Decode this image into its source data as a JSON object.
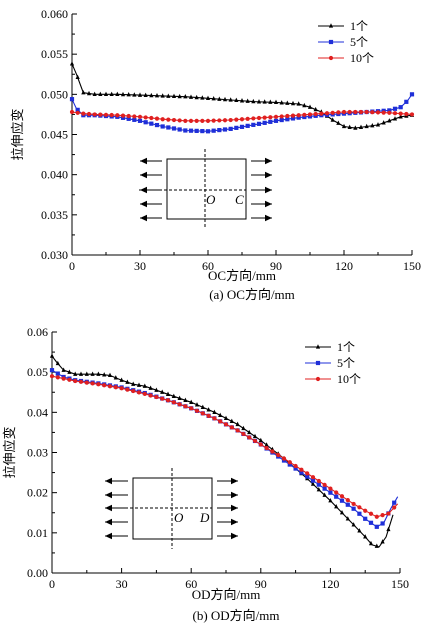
{
  "chart_data": [
    {
      "type": "line",
      "xlabel": "OC方向/mm",
      "ylabel": "拉伸应变",
      "caption": "(a) OC方向/mm",
      "xlim": [
        0,
        150
      ],
      "ylim": [
        0.03,
        0.06
      ],
      "xticks": [
        0,
        30,
        60,
        90,
        120,
        150
      ],
      "xtick_labels": [
        "0",
        "30",
        "60",
        "90",
        "120",
        "150"
      ],
      "yticks": [
        0.03,
        0.035,
        0.04,
        0.045,
        0.05,
        0.055,
        0.06
      ],
      "ytick_labels": [
        "0.030",
        "0.035",
        "0.040",
        "0.045",
        "0.050",
        "0.055",
        "0.060"
      ],
      "legend_position": "top-right",
      "inset": {
        "center_label": "O",
        "point_label": "C"
      },
      "series": [
        {
          "name": "1个",
          "color": "#000000",
          "marker": "triangle",
          "points": [
            [
              0,
              0.0538
            ],
            [
              2,
              0.0525
            ],
            [
              5,
              0.0502
            ],
            [
              10,
              0.05
            ],
            [
              20,
              0.05
            ],
            [
              30,
              0.0499
            ],
            [
              40,
              0.0498
            ],
            [
              50,
              0.0497
            ],
            [
              60,
              0.0495
            ],
            [
              70,
              0.0493
            ],
            [
              80,
              0.0491
            ],
            [
              90,
              0.049
            ],
            [
              100,
              0.0488
            ],
            [
              105,
              0.0484
            ],
            [
              110,
              0.0478
            ],
            [
              115,
              0.0468
            ],
            [
              120,
              0.046
            ],
            [
              125,
              0.0458
            ],
            [
              130,
              0.046
            ],
            [
              135,
              0.0462
            ],
            [
              140,
              0.0467
            ],
            [
              145,
              0.0472
            ],
            [
              150,
              0.0474
            ]
          ]
        },
        {
          "name": "5个",
          "color": "#1f2fd8",
          "marker": "square",
          "points": [
            [
              0,
              0.0494
            ],
            [
              2,
              0.0482
            ],
            [
              5,
              0.0474
            ],
            [
              10,
              0.0474
            ],
            [
              20,
              0.0472
            ],
            [
              30,
              0.0467
            ],
            [
              40,
              0.046
            ],
            [
              50,
              0.0455
            ],
            [
              60,
              0.0454
            ],
            [
              70,
              0.0457
            ],
            [
              80,
              0.0462
            ],
            [
              90,
              0.0467
            ],
            [
              100,
              0.0471
            ],
            [
              110,
              0.0474
            ],
            [
              120,
              0.0476
            ],
            [
              130,
              0.0478
            ],
            [
              140,
              0.048
            ],
            [
              145,
              0.0484
            ],
            [
              148,
              0.0492
            ],
            [
              150,
              0.05
            ]
          ]
        },
        {
          "name": "10个",
          "color": "#e02020",
          "marker": "circle",
          "points": [
            [
              0,
              0.0478
            ],
            [
              5,
              0.0476
            ],
            [
              10,
              0.0475
            ],
            [
              20,
              0.0474
            ],
            [
              30,
              0.0472
            ],
            [
              40,
              0.0469
            ],
            [
              50,
              0.0467
            ],
            [
              60,
              0.0467
            ],
            [
              70,
              0.0468
            ],
            [
              80,
              0.047
            ],
            [
              90,
              0.0472
            ],
            [
              100,
              0.0474
            ],
            [
              110,
              0.0476
            ],
            [
              120,
              0.0478
            ],
            [
              130,
              0.0478
            ],
            [
              140,
              0.0477
            ],
            [
              150,
              0.0475
            ]
          ]
        }
      ]
    },
    {
      "type": "line",
      "xlabel": "OD方向/mm",
      "ylabel": "拉伸应变",
      "caption": "(b) OD方向/mm",
      "xlim": [
        0,
        150
      ],
      "ylim": [
        0.0,
        0.06
      ],
      "xticks": [
        0,
        30,
        60,
        90,
        120,
        150
      ],
      "xtick_labels": [
        "0",
        "30",
        "60",
        "90",
        "120",
        "150"
      ],
      "yticks": [
        0.0,
        0.01,
        0.02,
        0.03,
        0.04,
        0.05,
        0.06
      ],
      "ytick_labels": [
        "0.00",
        "0.01",
        "0.02",
        "0.03",
        "0.04",
        "0.05",
        "0.06"
      ],
      "legend_position": "top-right",
      "inset": {
        "center_label": "O",
        "point_label": "D"
      },
      "series": [
        {
          "name": "1个",
          "color": "#000000",
          "marker": "triangle",
          "points": [
            [
              0,
              0.054
            ],
            [
              2,
              0.0525
            ],
            [
              5,
              0.0505
            ],
            [
              10,
              0.0495
            ],
            [
              20,
              0.0495
            ],
            [
              25,
              0.0492
            ],
            [
              30,
              0.048
            ],
            [
              35,
              0.047
            ],
            [
              40,
              0.0465
            ],
            [
              45,
              0.0455
            ],
            [
              50,
              0.0445
            ],
            [
              60,
              0.0425
            ],
            [
              70,
              0.04
            ],
            [
              80,
              0.037
            ],
            [
              90,
              0.033
            ],
            [
              100,
              0.0285
            ],
            [
              110,
              0.0235
            ],
            [
              120,
              0.018
            ],
            [
              130,
              0.012
            ],
            [
              135,
              0.009
            ],
            [
              138,
              0.007
            ],
            [
              141,
              0.0065
            ],
            [
              144,
              0.009
            ],
            [
              147,
              0.0145
            ]
          ]
        },
        {
          "name": "5个",
          "color": "#1f2fd8",
          "marker": "square",
          "points": [
            [
              0,
              0.0505
            ],
            [
              5,
              0.0488
            ],
            [
              10,
              0.048
            ],
            [
              20,
              0.0472
            ],
            [
              30,
              0.0462
            ],
            [
              40,
              0.0448
            ],
            [
              50,
              0.043
            ],
            [
              60,
              0.041
            ],
            [
              70,
              0.0385
            ],
            [
              80,
              0.0355
            ],
            [
              90,
              0.032
            ],
            [
              100,
              0.028
            ],
            [
              110,
              0.024
            ],
            [
              120,
              0.02
            ],
            [
              130,
              0.016
            ],
            [
              135,
              0.0135
            ],
            [
              140,
              0.0115
            ],
            [
              143,
              0.0125
            ],
            [
              146,
              0.016
            ],
            [
              149,
              0.019
            ]
          ]
        },
        {
          "name": "10个",
          "color": "#e02020",
          "marker": "circle",
          "points": [
            [
              0,
              0.049
            ],
            [
              5,
              0.0484
            ],
            [
              10,
              0.0478
            ],
            [
              20,
              0.047
            ],
            [
              30,
              0.046
            ],
            [
              40,
              0.0446
            ],
            [
              50,
              0.043
            ],
            [
              60,
              0.041
            ],
            [
              70,
              0.0385
            ],
            [
              80,
              0.0355
            ],
            [
              90,
              0.032
            ],
            [
              100,
              0.0285
            ],
            [
              110,
              0.0248
            ],
            [
              120,
              0.021
            ],
            [
              130,
              0.0172
            ],
            [
              135,
              0.0155
            ],
            [
              140,
              0.014
            ],
            [
              145,
              0.0148
            ],
            [
              149,
              0.0172
            ]
          ]
        }
      ]
    }
  ]
}
